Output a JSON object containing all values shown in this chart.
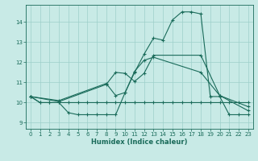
{
  "xlabel": "Humidex (Indice chaleur)",
  "bg_color": "#c8eae6",
  "grid_color": "#9dcfca",
  "line_color": "#1a6b5a",
  "xlim": [
    -0.5,
    23.5
  ],
  "ylim": [
    8.7,
    14.85
  ],
  "xticks": [
    0,
    1,
    2,
    3,
    4,
    5,
    6,
    7,
    8,
    9,
    10,
    11,
    12,
    13,
    14,
    15,
    16,
    17,
    18,
    19,
    20,
    21,
    22,
    23
  ],
  "yticks": [
    9,
    10,
    11,
    12,
    13,
    14
  ],
  "s1_x": [
    0,
    1,
    2,
    3,
    4,
    5,
    6,
    7,
    8,
    9,
    10,
    11,
    12,
    13,
    14,
    15,
    16,
    17,
    18,
    19,
    20,
    21,
    22,
    23
  ],
  "s1_y": [
    10.3,
    10.0,
    10.0,
    10.0,
    9.5,
    9.4,
    9.4,
    9.4,
    9.4,
    9.4,
    10.5,
    11.5,
    12.4,
    13.2,
    13.1,
    14.1,
    14.5,
    14.5,
    14.4,
    10.3,
    10.3,
    9.4,
    9.4,
    9.4
  ],
  "s2_x": [
    0,
    1,
    2,
    3,
    4,
    5,
    6,
    7,
    8,
    9,
    10,
    11,
    12,
    13,
    14,
    15,
    16,
    17,
    18,
    19,
    20,
    21,
    22,
    23
  ],
  "s2_y": [
    10.3,
    10.0,
    10.0,
    10.0,
    10.0,
    10.0,
    10.0,
    10.0,
    10.0,
    10.0,
    10.0,
    10.0,
    10.0,
    10.0,
    10.0,
    10.0,
    10.0,
    10.0,
    10.0,
    10.0,
    10.0,
    10.0,
    10.0,
    10.0
  ],
  "s3_x": [
    0,
    3,
    8,
    9,
    10,
    11,
    12,
    13,
    18,
    20,
    23
  ],
  "s3_y": [
    10.3,
    10.05,
    10.9,
    11.5,
    11.45,
    11.05,
    11.45,
    12.35,
    12.35,
    10.35,
    9.8
  ],
  "s4_x": [
    0,
    3,
    8,
    9,
    10,
    11,
    12,
    13,
    18,
    20,
    23
  ],
  "s4_y": [
    10.3,
    10.1,
    10.95,
    10.35,
    10.5,
    11.55,
    12.1,
    12.25,
    11.5,
    10.35,
    9.6
  ]
}
